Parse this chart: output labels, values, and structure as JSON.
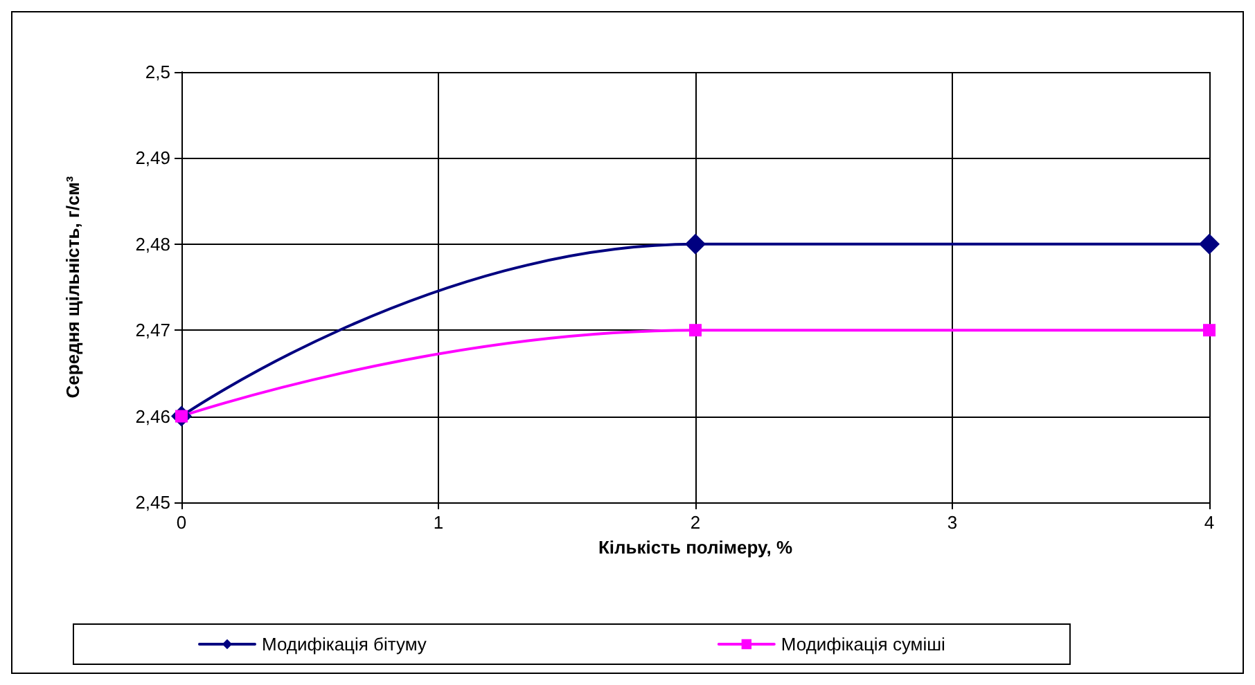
{
  "chart_data": {
    "type": "line",
    "xlabel": "Кількість полімеру, %",
    "ylabel": "Середня щільність, г/см³",
    "x": [
      0,
      2,
      4
    ],
    "series": [
      {
        "name": "Модифікація бітуму",
        "color": "#000080",
        "values": [
          2.46,
          2.48,
          2.48
        ],
        "marker": "diamond"
      },
      {
        "name": "Модифікація суміші",
        "color": "#ff00ff",
        "values": [
          2.46,
          2.47,
          2.47
        ],
        "marker": "square"
      }
    ],
    "xlim": [
      0,
      4
    ],
    "xticks": [
      0,
      1,
      2,
      3,
      4
    ],
    "ylim": [
      2.45,
      2.5
    ],
    "yticks": [
      {
        "value": 2.45,
        "label": "2,45"
      },
      {
        "value": 2.46,
        "label": "2,46"
      },
      {
        "value": 2.47,
        "label": "2,47"
      },
      {
        "value": 2.48,
        "label": "2,48"
      },
      {
        "value": 2.49,
        "label": "2,49"
      },
      {
        "value": 2.5,
        "label": "2,5"
      }
    ],
    "grid": true,
    "legend": "bottom",
    "line_style": "solid"
  }
}
